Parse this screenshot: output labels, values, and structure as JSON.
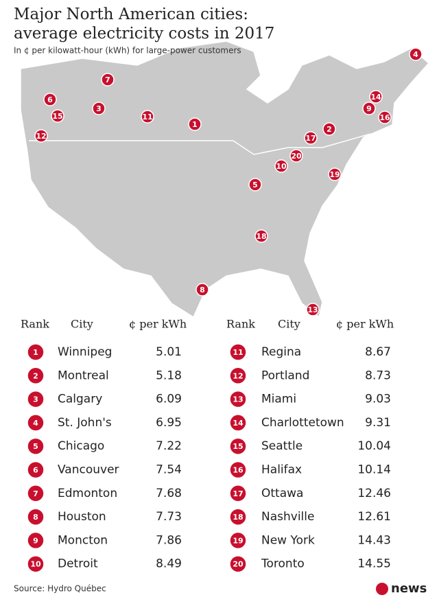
{
  "header": {
    "title": [
      "Major North American cities:",
      "average electricity costs in 2017"
    ],
    "subtitle": "In ¢ per kilowatt-hour (kWh) for large-power customers"
  },
  "table": {
    "columns": [
      "Rank",
      "City",
      "¢ per kWh"
    ],
    "rows": [
      [
        1,
        "Winnipeg",
        5.01
      ],
      [
        2,
        "Montreal",
        5.18
      ],
      [
        3,
        "Calgary",
        6.09
      ],
      [
        4,
        "St. John's",
        6.95
      ],
      [
        5,
        "Chicago",
        7.22
      ],
      [
        6,
        "Vancouver",
        7.54
      ],
      [
        7,
        "Edmonton",
        7.68
      ],
      [
        8,
        "Houston",
        7.73
      ],
      [
        9,
        "Moncton",
        7.86
      ],
      [
        10,
        "Detroit",
        8.49
      ],
      [
        11,
        "Regina",
        8.67
      ],
      [
        12,
        "Portland",
        8.73
      ],
      [
        13,
        "Miami",
        9.03
      ],
      [
        14,
        "Charlottetown",
        9.31
      ],
      [
        15,
        "Seattle",
        10.04
      ],
      [
        16,
        "Halifax",
        10.14
      ],
      [
        17,
        "Ottawa",
        12.46
      ],
      [
        18,
        "Nashville",
        12.61
      ],
      [
        19,
        "New York",
        14.43
      ],
      [
        20,
        "Toronto",
        14.55
      ]
    ]
  },
  "footer": {
    "source": "Source: Hydro Québec",
    "logo": "news"
  }
}
